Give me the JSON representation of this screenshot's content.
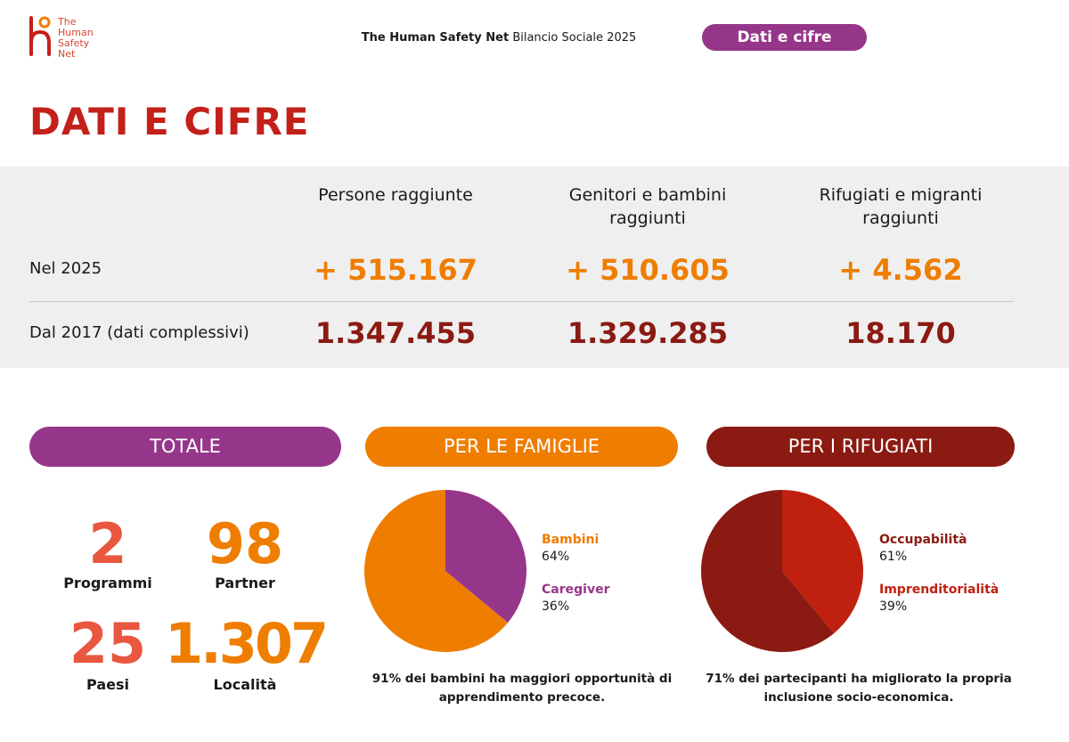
{
  "logo": {
    "lines": [
      "The",
      "Human",
      "Safety",
      "Net"
    ]
  },
  "header": {
    "brand": "The Human Safety Net",
    "subtitle": "Bilancio Sociale 2025",
    "chip": "Dati e cifre"
  },
  "title": "DATI E CIFRE",
  "table": {
    "columns": [
      "Persone raggiunte",
      "Genitori e bambini raggiunti",
      "Rifugiati e migranti raggiunti"
    ],
    "rows": [
      {
        "label": "Nel 2025",
        "values": [
          "+ 515.167",
          "+ 510.605",
          "+ 4.562"
        ]
      },
      {
        "label": "Dal 2017 (dati complessivi)",
        "values": [
          "1.347.455",
          "1.329.285",
          "18.170"
        ]
      }
    ]
  },
  "sections": {
    "totale": "TOTALE",
    "famiglie": "PER LE FAMIGLIE",
    "rifugiati": "PER I RIFUGIATI"
  },
  "stats": [
    {
      "value": "2",
      "label": "Programmi"
    },
    {
      "value": "98",
      "label": "Partner"
    },
    {
      "value": "25",
      "label": "Paesi"
    },
    {
      "value": "1.307",
      "label": "Località"
    }
  ],
  "chart_data": [
    {
      "type": "pie",
      "title": "PER LE FAMIGLIE",
      "slices": [
        {
          "label": "Bambini",
          "value": 64,
          "display": "64%",
          "color": "#ef7d00"
        },
        {
          "label": "Caregiver",
          "value": 36,
          "display": "36%",
          "color": "#96368a"
        }
      ],
      "caption": "91% dei bambini ha maggiori opportunità di apprendimento precoce."
    },
    {
      "type": "pie",
      "title": "PER I RIFUGIATI",
      "slices": [
        {
          "label": "Occupabilità",
          "value": 61,
          "display": "61%",
          "color": "#8b1a12"
        },
        {
          "label": "Imprenditorialità",
          "value": 39,
          "display": "39%",
          "color": "#c0200f"
        }
      ],
      "caption": "71% dei partecipanti ha migliorato la propria inclusione socio-economica."
    }
  ]
}
